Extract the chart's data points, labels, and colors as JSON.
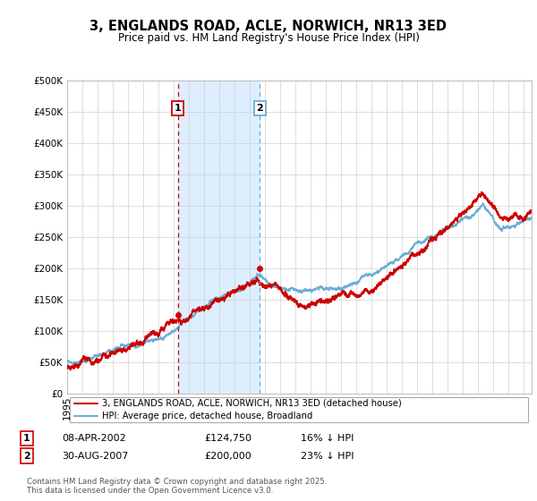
{
  "title": "3, ENGLANDS ROAD, ACLE, NORWICH, NR13 3ED",
  "subtitle": "Price paid vs. HM Land Registry's House Price Index (HPI)",
  "legend_line1": "3, ENGLANDS ROAD, ACLE, NORWICH, NR13 3ED (detached house)",
  "legend_line2": "HPI: Average price, detached house, Broadland",
  "annotation1_date": "08-APR-2002",
  "annotation1_price": "£124,750",
  "annotation1_hpi": "16% ↓ HPI",
  "annotation2_date": "30-AUG-2007",
  "annotation2_price": "£200,000",
  "annotation2_hpi": "23% ↓ HPI",
  "footer": "Contains HM Land Registry data © Crown copyright and database right 2025.\nThis data is licensed under the Open Government Licence v3.0.",
  "hpi_color": "#6baed6",
  "price_color": "#cc0000",
  "vline1_color": "#cc0000",
  "vline2_color": "#6baed6",
  "shaded_color": "#ddeeff",
  "annotation_box_color": "#cc0000",
  "ylim_min": 0,
  "ylim_max": 500000,
  "yticks": [
    0,
    50000,
    100000,
    150000,
    200000,
    250000,
    300000,
    350000,
    400000,
    450000,
    500000
  ],
  "sale1_x": 2002.27,
  "sale1_y": 124750,
  "sale2_x": 2007.66,
  "sale2_y": 200000,
  "xmin": 1995.0,
  "xmax": 2025.5
}
